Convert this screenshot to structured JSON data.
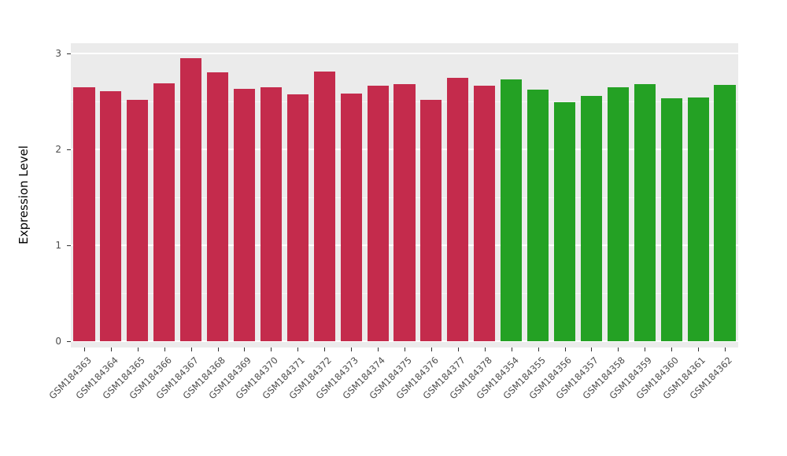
{
  "chart_data": {
    "type": "bar",
    "title": "",
    "xlabel": "",
    "ylabel": "Expression Level",
    "ylim": [
      0,
      3
    ],
    "yticks": [
      0,
      1,
      2,
      3
    ],
    "minor_ticks": [
      0.5,
      1.5,
      2.5
    ],
    "grid": "on",
    "legend": "none",
    "panel_bg": "#EBEBEB",
    "grid_color": "#FFFFFF",
    "tick_label_color": "#4D4D4D",
    "categories": [
      "GSM184363",
      "GSM184364",
      "GSM184365",
      "GSM184366",
      "GSM184367",
      "GSM184368",
      "GSM184369",
      "GSM184370",
      "GSM184371",
      "GSM184372",
      "GSM184373",
      "GSM184374",
      "GSM184375",
      "GSM184376",
      "GSM184377",
      "GSM184378",
      "GSM184354",
      "GSM184355",
      "GSM184356",
      "GSM184357",
      "GSM184358",
      "GSM184359",
      "GSM184360",
      "GSM184361",
      "GSM184362"
    ],
    "values": [
      2.65,
      2.61,
      2.52,
      2.69,
      2.95,
      2.8,
      2.63,
      2.65,
      2.57,
      2.81,
      2.58,
      2.66,
      2.68,
      2.52,
      2.75,
      2.66,
      2.73,
      2.62,
      2.49,
      2.56,
      2.65,
      2.68,
      2.53,
      2.54,
      2.67
    ],
    "group_split_index": 16,
    "palette": {
      "group1_red": "#C42B4C",
      "group2_green": "#24A124"
    }
  }
}
